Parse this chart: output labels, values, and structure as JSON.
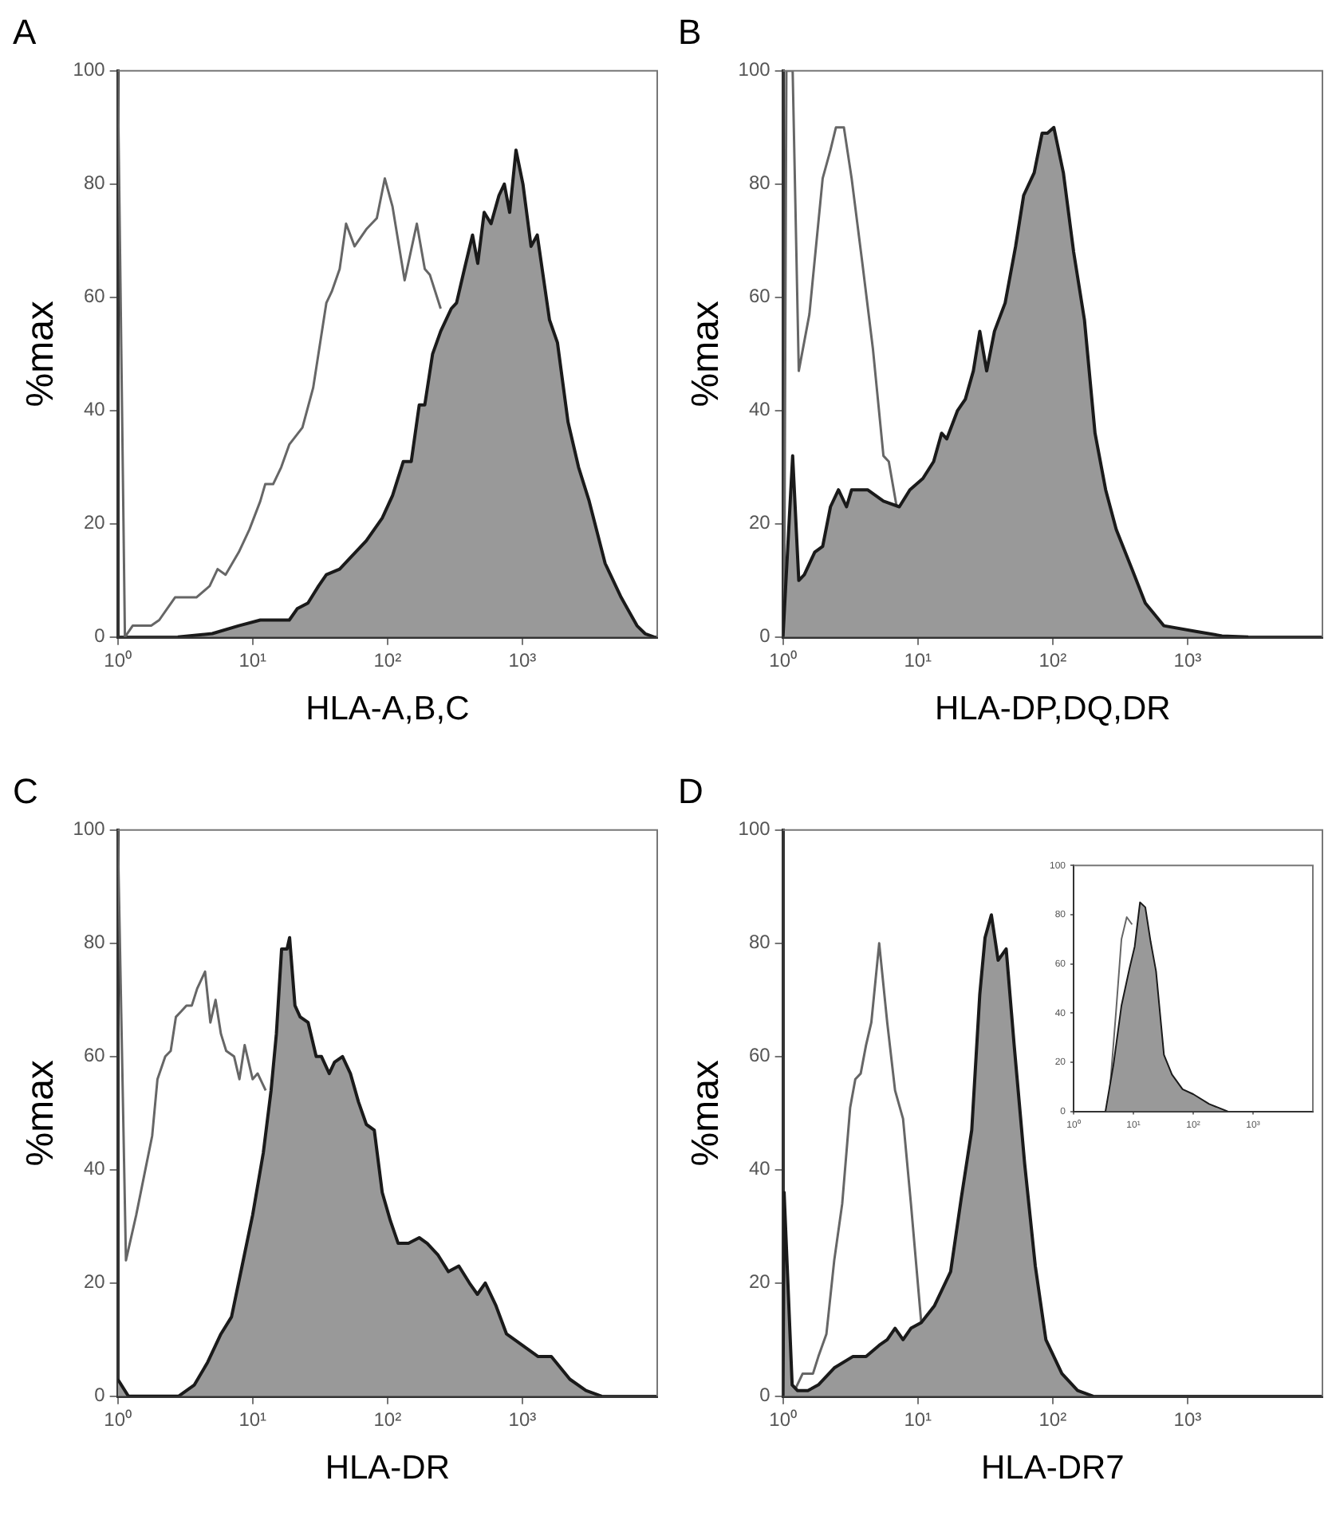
{
  "chart_data": [
    {
      "type": "area",
      "title": "A",
      "xlabel": "HLA-A,B,C",
      "ylabel": "%max",
      "log": "x",
      "xlim": [
        1,
        10000
      ],
      "xticks": [
        {
          "value": 1,
          "label": "10⁰"
        },
        {
          "value": 10,
          "label": "10¹"
        },
        {
          "value": 100,
          "label": "10²"
        },
        {
          "value": 1000,
          "label": "10³"
        }
      ],
      "ylim": [
        0,
        100
      ],
      "yticks": [
        0,
        20,
        40,
        60,
        80,
        100
      ],
      "series": [
        {
          "type": "line",
          "color": "#666666",
          "x": [
            1,
            1.13,
            1.29,
            1.77,
            2.03,
            2.66,
            3.83,
            4.8,
            5.5,
            6.3,
            7.9,
            9.47,
            11.4,
            12.4,
            14.2,
            16.3,
            18.7,
            23.4,
            28.1,
            35.2,
            38.6,
            44.2,
            49.3,
            57,
            69.6,
            83.4,
            95.5,
            109,
            134,
            165,
            189,
            206,
            248
          ],
          "values": [
            100,
            0,
            2,
            2,
            3,
            7,
            7,
            9,
            12,
            11,
            15,
            19,
            24,
            27,
            27,
            30,
            34,
            37,
            44,
            59,
            61,
            65,
            73,
            69,
            72,
            74,
            81,
            76,
            63,
            73,
            65,
            64,
            58
          ]
        },
        {
          "type": "area",
          "color": "#999999",
          "x": [
            2.79,
            5.02,
            7.9,
            11.4,
            18.7,
            21.4,
            25.7,
            30.8,
            35.2,
            44.2,
            53,
            69.6,
            91.4,
            109,
            131,
            150,
            172,
            189,
            216,
            248,
            297,
            325,
            372,
            427,
            467,
            521,
            586,
            671,
            735,
            805,
            897,
            1010,
            1160,
            1290,
            1590,
            1820,
            2180,
            2610,
            3130,
            4110,
            5400,
            7080,
            8120,
            9500
          ],
          "values": [
            0,
            0.6,
            2,
            3,
            3,
            5,
            6,
            9,
            11,
            12,
            14,
            17,
            21,
            25,
            31,
            31,
            41,
            41,
            50,
            54,
            58,
            59,
            65,
            71,
            66,
            75,
            73,
            78,
            80,
            75,
            86,
            80,
            69,
            71,
            56,
            52,
            38,
            30,
            24,
            13,
            7,
            2,
            0.6,
            0
          ]
        }
      ]
    },
    {
      "type": "area",
      "title": "B",
      "xlabel": "HLA-DP,DQ,DR",
      "ylabel": "%max",
      "log": "x",
      "xlim": [
        1,
        10000
      ],
      "xticks": [
        {
          "value": 1,
          "label": "10⁰"
        },
        {
          "value": 10,
          "label": "10¹"
        },
        {
          "value": 100,
          "label": "10²"
        },
        {
          "value": 1000,
          "label": "10³"
        }
      ],
      "ylim": [
        0,
        100
      ],
      "yticks": [
        0,
        20,
        40,
        60,
        80,
        100
      ],
      "series": [
        {
          "type": "line",
          "color": "#666666",
          "x": [
            1.02,
            1.06,
            1.18,
            1.31,
            1.57,
            1.97,
            2.25,
            2.47,
            2.83,
            3.23,
            3.88,
            4.64,
            5.56,
            6.09,
            6.97
          ],
          "values": [
            0,
            100,
            100,
            47,
            57,
            81,
            86,
            90,
            90,
            81,
            66,
            51,
            32,
            31,
            23
          ]
        },
        {
          "type": "area",
          "color": "#999999",
          "x": [
            1,
            1.18,
            1.31,
            1.44,
            1.72,
            1.97,
            2.25,
            2.58,
            2.96,
            3.23,
            4.24,
            5.56,
            7.29,
            8.73,
            10.9,
            13.1,
            15,
            16.4,
            19.7,
            22.5,
            25.8,
            28.8,
            32.4,
            37,
            44.4,
            53.1,
            60.9,
            72.9,
            83.5,
            91.4,
            102,
            120,
            143,
            172,
            206,
            247,
            296,
            387,
            486,
            666,
            1150,
            1800,
            2820
          ],
          "values": [
            0,
            32,
            10,
            11,
            15,
            16,
            23,
            26,
            23,
            26,
            26,
            24,
            23,
            26,
            28,
            31,
            36,
            35,
            40,
            42,
            47,
            54,
            47,
            54,
            59,
            69,
            78,
            82,
            89,
            89,
            90,
            82,
            68,
            56,
            36,
            26,
            19,
            12,
            6,
            2,
            1,
            0.2,
            0
          ]
        }
      ]
    },
    {
      "type": "area",
      "title": "C",
      "xlabel": "HLA-DR",
      "ylabel": "%max",
      "log": "x",
      "xlim": [
        1,
        10000
      ],
      "xticks": [
        {
          "value": 1,
          "label": "10⁰"
        },
        {
          "value": 10,
          "label": "10¹"
        },
        {
          "value": 100,
          "label": "10²"
        },
        {
          "value": 1000,
          "label": "10³"
        }
      ],
      "ylim": [
        0,
        100
      ],
      "yticks": [
        0,
        20,
        40,
        60,
        80,
        100
      ],
      "series": [
        {
          "type": "line",
          "color": "#666666",
          "x": [
            1,
            1.15,
            1.37,
            1.57,
            1.8,
            1.97,
            2.25,
            2.47,
            2.7,
            2.96,
            3.23,
            3.54,
            3.88,
            4.44,
            4.86,
            5.31,
            5.82,
            6.37,
            7.29,
            7.98,
            8.73,
            10,
            10.9,
            12.5
          ],
          "values": [
            100,
            24,
            32,
            39,
            46,
            56,
            60,
            61,
            67,
            68,
            69,
            69,
            72,
            75,
            66,
            70,
            64,
            61,
            60,
            56,
            62,
            56,
            57,
            54
          ]
        },
        {
          "type": "area",
          "color": "#999999",
          "x": [
            1,
            1.2,
            2.82,
            3.7,
            4.64,
            5.82,
            6.97,
            8.35,
            10,
            12,
            13.7,
            15,
            16.4,
            18,
            18.8,
            20.6,
            22.5,
            25.8,
            29.6,
            32.4,
            37,
            40.5,
            46.4,
            53.1,
            60.9,
            69.7,
            79.8,
            91.4,
            105,
            120,
            143,
            172,
            197,
            236,
            283,
            338,
            405,
            464,
            531,
            637,
            763,
            1000,
            1310,
            1640,
            2250,
            2960,
            3880
          ],
          "values": [
            3,
            0,
            0,
            2,
            6,
            11,
            14,
            23,
            32,
            43,
            54,
            64,
            79,
            79,
            81,
            69,
            67,
            66,
            60,
            60,
            57,
            59,
            60,
            57,
            52,
            48,
            47,
            36,
            31,
            27,
            27,
            28,
            27,
            25,
            22,
            23,
            20,
            18,
            20,
            16,
            11,
            9,
            7,
            7,
            3,
            1,
            0
          ]
        }
      ]
    },
    {
      "type": "area",
      "title": "D",
      "xlabel": "HLA-DR7",
      "ylabel": "%max",
      "log": "x",
      "xlim": [
        1,
        10000
      ],
      "xticks": [
        {
          "value": 1,
          "label": "10⁰"
        },
        {
          "value": 10,
          "label": "10¹"
        },
        {
          "value": 100,
          "label": "10²"
        },
        {
          "value": 1000,
          "label": "10³"
        }
      ],
      "ylim": [
        0,
        100
      ],
      "yticks": [
        0,
        20,
        40,
        60,
        80,
        100
      ],
      "series": [
        {
          "type": "line",
          "color": "#666666",
          "x": [
            1.22,
            1.4,
            1.67,
            1.83,
            2.1,
            2.4,
            2.75,
            3.15,
            3.44,
            3.77,
            4.13,
            4.52,
            5.17,
            5.93,
            6.78,
            7.77,
            8.89,
            10.6
          ],
          "values": [
            1,
            4,
            4,
            7,
            11,
            24,
            34,
            51,
            56,
            57,
            62,
            66,
            80,
            66,
            54,
            49,
            34,
            13
          ]
        },
        {
          "type": "area",
          "color": "#999999",
          "x": [
            1,
            1.02,
            1.17,
            1.28,
            1.53,
            1.83,
            2.4,
            3.29,
            4.13,
            5.17,
            5.93,
            6.78,
            7.77,
            8.89,
            10.6,
            13.3,
            17.5,
            21,
            25.1,
            28.8,
            31.5,
            35.1,
            39.4,
            45.2,
            51.8,
            62,
            74.3,
            89,
            117,
            153,
            200
          ],
          "values": [
            0,
            36,
            2,
            1,
            1,
            2,
            5,
            7,
            7,
            9,
            10,
            12,
            10,
            12,
            13,
            16,
            22,
            35,
            47,
            71,
            81,
            85,
            77,
            79,
            62,
            41,
            23,
            10,
            4,
            1,
            0
          ]
        }
      ]
    },
    {
      "type": "area",
      "log": "x",
      "xlim": [
        1,
        10000
      ],
      "xticks": [
        {
          "value": 1,
          "label": "10⁰"
        },
        {
          "value": 10,
          "label": "10¹"
        },
        {
          "value": 100,
          "label": "10²"
        },
        {
          "value": 1000,
          "label": "10³"
        }
      ],
      "ylim": [
        0,
        100
      ],
      "yticks": [
        0,
        20,
        40,
        60,
        80,
        100
      ],
      "series": [
        {
          "type": "line",
          "color": "#666666",
          "x": [
            3.78,
            5.14,
            6.31,
            7.74,
            9.5
          ],
          "values": [
            0,
            41,
            70,
            79,
            76
          ]
        },
        {
          "type": "area",
          "color": "#999999",
          "x": [
            3.41,
            4.64,
            6.31,
            8.58,
            10.5,
            12.9,
            15.8,
            19.4,
            23.9,
            32.4,
            44.1,
            66.4,
            100,
            185,
            378
          ],
          "values": [
            0,
            19,
            43,
            58,
            67,
            85,
            83,
            69,
            57,
            23,
            15,
            9,
            7,
            3,
            0
          ]
        }
      ]
    }
  ]
}
